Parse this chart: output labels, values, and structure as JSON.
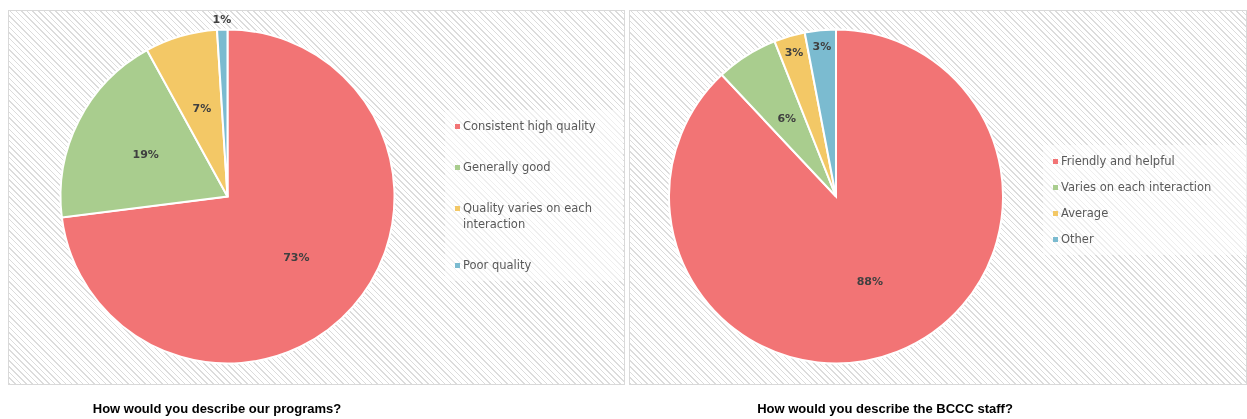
{
  "chart_data": [
    {
      "type": "pie",
      "title": "How would you describe our programs?",
      "categories": [
        "Consistent high quality",
        "Generally good",
        "Quality varies on each interaction",
        "Poor quality"
      ],
      "values": [
        73,
        19,
        7,
        1
      ],
      "colors": [
        "#f27475",
        "#a9cd8e",
        "#f3c866",
        "#7bbbd0"
      ],
      "value_labels": [
        "73%",
        "19%",
        "7%",
        "1%"
      ],
      "legend": "right"
    },
    {
      "type": "pie",
      "title": "How would you describe the BCCC staff?",
      "categories": [
        "Friendly and helpful",
        "Varies on each interaction",
        "Average",
        "Other"
      ],
      "values": [
        88,
        6,
        3,
        3
      ],
      "colors": [
        "#f27475",
        "#a9cd8e",
        "#f3c866",
        "#7bbbd0"
      ],
      "value_labels": [
        "88%",
        "6%",
        "3%",
        "3%"
      ],
      "legend": "right"
    }
  ]
}
